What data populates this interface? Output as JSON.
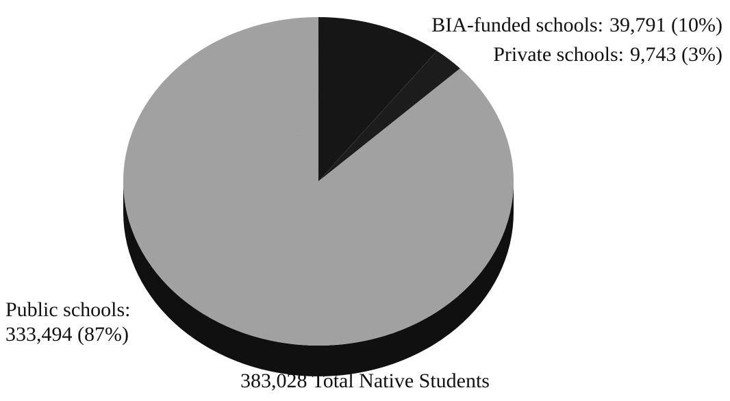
{
  "chart_data": {
    "type": "pie",
    "categories": [
      "BIA-funded schools:",
      "Private schools:",
      "Public schools:"
    ],
    "values": [
      39791,
      9743,
      333494
    ],
    "value_labels": [
      "39,791 (10%)",
      "9,743 (3%)",
      "333,494 (87%)"
    ],
    "colors": [
      "#141414",
      "#1e1e1e",
      "#a8a8a8"
    ],
    "caption": "383,028 Total Native Students"
  }
}
